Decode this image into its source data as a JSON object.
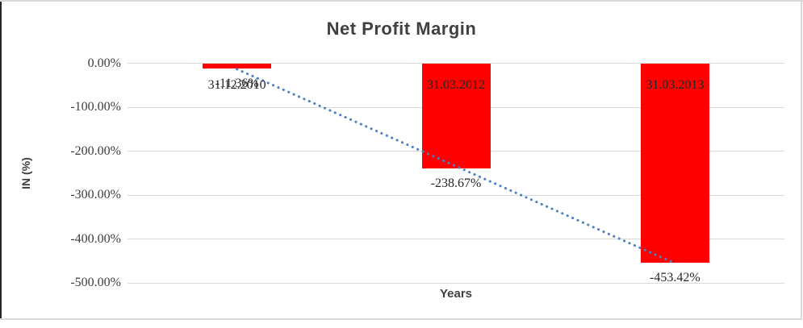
{
  "chart_data": {
    "type": "bar",
    "title": "Net Profit Margin",
    "xlabel": "Years",
    "ylabel": "IN (%)",
    "categories": [
      "31.12.2010",
      "31.03.2012",
      "31.03.2013"
    ],
    "values": [
      -11.36,
      -238.67,
      -453.42
    ],
    "data_labels": [
      "-11.36%",
      "-238.67%",
      "-453.42%"
    ],
    "yticks": [
      {
        "value": 0,
        "label": "0.00%"
      },
      {
        "value": -100,
        "label": "-100.00%"
      },
      {
        "value": -200,
        "label": "-200.00%"
      },
      {
        "value": -300,
        "label": "-300.00%"
      },
      {
        "value": -400,
        "label": "-400.00%"
      },
      {
        "value": -500,
        "label": "-500.00%"
      }
    ],
    "ylim": [
      0,
      -500
    ],
    "grid": true,
    "legend": false,
    "bar_color": "#FF0000",
    "trendline": {
      "type": "linear",
      "style": "dotted",
      "color": "#4A80C4"
    },
    "colors": {
      "gridline": "#D9D9D9",
      "title_text": "#404040",
      "label_text": "#262626",
      "frame_border": "#D9D9D9",
      "frame_border_left": "#262626"
    }
  }
}
